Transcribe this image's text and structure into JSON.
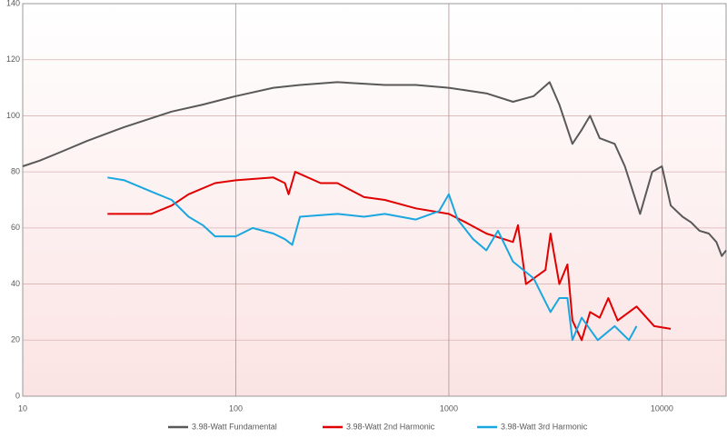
{
  "chart_data": {
    "type": "line",
    "xscale": "log",
    "grid": true,
    "legend": "bottom",
    "xlim": [
      10,
      20000
    ],
    "xticks": [
      10,
      100,
      1000,
      10000
    ],
    "ylim": [
      0,
      140
    ],
    "yticks": [
      0,
      20,
      40,
      60,
      80,
      100,
      120,
      140
    ],
    "series": [
      {
        "name": "3.98-Watt Fundamental",
        "color": "#595959",
        "x": [
          10,
          12,
          15,
          20,
          30,
          50,
          70,
          100,
          150,
          200,
          300,
          500,
          700,
          1000,
          1500,
          2000,
          2500,
          2970,
          3300,
          3800,
          4200,
          4600,
          5100,
          6000,
          6700,
          7900,
          9000,
          10000,
          11000,
          12500,
          13700,
          15000,
          16600,
          18000,
          19100,
          20000
        ],
        "values": [
          82,
          84,
          87,
          91,
          96,
          101.5,
          104,
          107,
          110,
          111,
          112,
          111,
          111,
          110,
          108,
          105,
          107,
          112,
          104,
          90,
          95,
          100,
          92,
          90,
          82,
          65,
          80,
          82,
          68,
          64,
          62,
          59,
          58,
          55,
          50,
          52
        ]
      },
      {
        "name": "3.98-Watt 2nd Harmonic",
        "color": "#e00000",
        "x": [
          25,
          40,
          50,
          60,
          80,
          100,
          150,
          170,
          177,
          190,
          250,
          300,
          400,
          500,
          700,
          1000,
          1200,
          1500,
          2000,
          2110,
          2300,
          2840,
          3000,
          3300,
          3600,
          3800,
          4200,
          4600,
          5100,
          5600,
          6200,
          7600,
          9200,
          11000
        ],
        "values": [
          65,
          65,
          68,
          72,
          76,
          77,
          78,
          76,
          72,
          80,
          76,
          76,
          71,
          70,
          67,
          65,
          62,
          58,
          55,
          61,
          40,
          45,
          58,
          40,
          47,
          27,
          20,
          30,
          28,
          35,
          27,
          32,
          25,
          24
        ]
      },
      {
        "name": "3.98-Watt 3rd Harmonic",
        "color": "#1aa7e0",
        "x": [
          25,
          30,
          40,
          50,
          60,
          70,
          80,
          100,
          120,
          150,
          170,
          184,
          200,
          300,
          400,
          500,
          700,
          900,
          1000,
          1100,
          1300,
          1500,
          1700,
          2000,
          2500,
          3000,
          3300,
          3600,
          3800,
          4200,
          5000,
          6000,
          7000,
          7600
        ],
        "values": [
          78,
          77,
          73,
          70,
          64,
          61,
          57,
          57,
          60,
          58,
          56,
          54,
          64,
          65,
          64,
          65,
          63,
          66,
          72,
          63,
          56,
          52,
          59,
          48,
          42,
          30,
          35,
          35,
          20,
          28,
          20,
          25,
          20,
          25
        ]
      }
    ]
  }
}
